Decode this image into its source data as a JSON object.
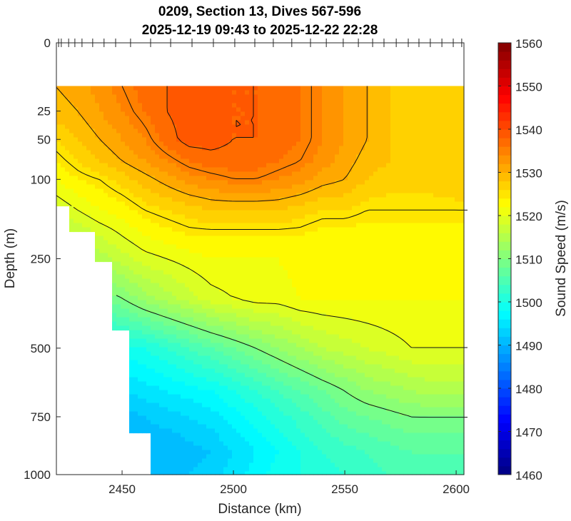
{
  "chart_data": {
    "type": "heatmap",
    "subtype": "filled-contour",
    "title": [
      "0209, Section 13, Dives 567-596",
      "2025-12-19 09:43 to 2025-12-22 22:28"
    ],
    "xlabel": "Distance (km)",
    "ylabel": "Depth (m)",
    "colorbar_label": "Sound Speed (m/s)",
    "xlim": [
      2420.5,
      2603.5
    ],
    "ylim": [
      0,
      1000
    ],
    "y_scale": "sqrt",
    "x_ticks": [
      2450,
      2500,
      2550,
      2600
    ],
    "x_tick_labels": [
      "2450",
      "2500",
      "2550",
      "2600"
    ],
    "y_ticks": [
      0,
      25,
      50,
      100,
      250,
      500,
      750,
      1000
    ],
    "y_tick_labels": [
      "0",
      "25",
      "50",
      "100",
      "250",
      "500",
      "750",
      "1000"
    ],
    "clim": [
      1460,
      1560
    ],
    "color_step": 2,
    "colormap": "jet",
    "colorbar_ticks": [
      1460,
      1470,
      1480,
      1490,
      1500,
      1510,
      1520,
      1530,
      1540,
      1550,
      1560
    ],
    "colorbar_tick_labels": [
      "1460",
      "1470",
      "1480",
      "1490",
      "1500",
      "1510",
      "1520",
      "1530",
      "1540",
      "1550",
      "1560"
    ],
    "contour_levels": [
      1510,
      1520,
      1525,
      1530,
      1535,
      1538
    ],
    "dive_distances": [
      2421.5,
      2422.7,
      2426,
      2428.8,
      2432,
      2436.8,
      2441.9,
      2447.1,
      2453.8,
      2462.8,
      2471.8,
      2481.4,
      2491,
      2500.6,
      2509.6,
      2517.9,
      2526.2,
      2534.6,
      2541.7,
      2549.3,
      2556.1,
      2562.5,
      2567.6,
      2573.1,
      2578.5,
      2583.3,
      2588.4,
      2593.6,
      2598.7,
      2602.5
    ],
    "data_top_depth": 10,
    "data_bottom": [
      [
        2420,
        145
      ],
      [
        2427,
        190
      ],
      [
        2437,
        260
      ],
      [
        2446,
        440
      ],
      [
        2454,
        815
      ],
      [
        2463,
        1000
      ],
      [
        2604,
        1000
      ]
    ],
    "distances": [
      2420,
      2430,
      2440,
      2450,
      2460,
      2470,
      2480,
      2490,
      2500,
      2510,
      2520,
      2530,
      2540,
      2550,
      2560,
      2570,
      2580,
      2590,
      2600
    ],
    "depths": [
      10,
      25,
      50,
      75,
      100,
      150,
      200,
      250,
      350,
      500,
      650,
      750,
      900,
      1000
    ],
    "values": [
      [
        1530,
        1531,
        1533,
        1535,
        1537,
        1538,
        1538.5,
        1538.5,
        1538,
        1538,
        1537.5,
        1536,
        1534,
        1532,
        1530,
        1528,
        1527,
        1527,
        1527
      ],
      [
        1529,
        1530,
        1532,
        1534,
        1536,
        1538,
        1539,
        1539,
        1538,
        1538,
        1537,
        1536,
        1534,
        1532,
        1530,
        1528,
        1527,
        1527,
        1527
      ],
      [
        1526,
        1528,
        1530,
        1532,
        1534,
        1537,
        1539,
        1539,
        1538,
        1538,
        1537,
        1536,
        1534,
        1532,
        1530,
        1528,
        1527,
        1527,
        1527
      ],
      [
        1524,
        1526,
        1528,
        1530,
        1532,
        1534,
        1536,
        1537,
        1537,
        1537,
        1536,
        1535,
        1533,
        1531,
        1529,
        1528,
        1527,
        1527,
        1527
      ],
      [
        1522,
        1524,
        1525,
        1527,
        1529,
        1531,
        1533,
        1534,
        1535,
        1535,
        1534,
        1533,
        1531,
        1530,
        1528,
        1527,
        1527,
        1527,
        1528
      ],
      [
        1518,
        1520,
        1522,
        1523,
        1525,
        1526,
        1527,
        1528,
        1528,
        1528,
        1528,
        1527,
        1526,
        1526,
        1525,
        1525,
        1525,
        1525,
        1525
      ],
      [
        1515,
        1516,
        1518,
        1520,
        1522,
        1523,
        1524,
        1524,
        1524,
        1524,
        1524,
        1524,
        1523,
        1523,
        1523,
        1523,
        1523,
        1523,
        1523
      ],
      [
        1512,
        1513,
        1515,
        1517,
        1519,
        1520,
        1521,
        1522,
        1522,
        1522,
        1522,
        1523,
        1523,
        1523,
        1523,
        1523,
        1523,
        1523,
        1523
      ],
      [
        1505,
        1507,
        1508,
        1510,
        1513,
        1515,
        1517,
        1519,
        1520,
        1521,
        1521,
        1522,
        1522,
        1522,
        1522,
        1522,
        1522,
        1522,
        1522
      ],
      [
        1496,
        1497,
        1498,
        1499,
        1500,
        1502,
        1504,
        1506,
        1508,
        1510,
        1512,
        1514,
        1516,
        1517,
        1518,
        1519,
        1520,
        1520,
        1520
      ],
      [
        1492,
        1492,
        1493,
        1494,
        1495,
        1496,
        1497,
        1498,
        1500,
        1502,
        1504,
        1506,
        1508,
        1510,
        1512,
        1513,
        1514,
        1515,
        1515
      ],
      [
        1490,
        1490,
        1490,
        1491,
        1492,
        1493,
        1494,
        1495,
        1497,
        1499,
        1501,
        1503,
        1505,
        1507,
        1508,
        1509,
        1510,
        1510,
        1510
      ],
      [
        1489,
        1489,
        1489,
        1490,
        1490,
        1490,
        1491,
        1492,
        1494,
        1496,
        1498,
        1500,
        1502,
        1503,
        1504,
        1505,
        1506,
        1506,
        1506
      ],
      [
        1489,
        1489,
        1490,
        1490,
        1491,
        1491,
        1492,
        1493,
        1495,
        1497,
        1499,
        1500,
        1501,
        1502,
        1503,
        1504,
        1505,
        1505,
        1505
      ]
    ]
  }
}
